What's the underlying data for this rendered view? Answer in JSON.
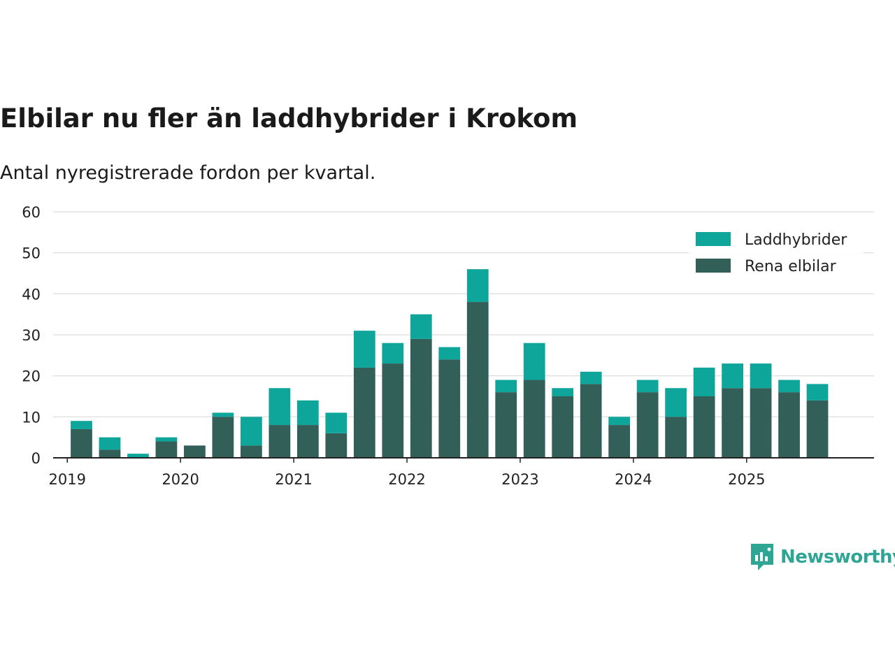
{
  "title": "Elbilar nu fler än laddhybrider i Krokom",
  "subtitle": "Antal nyregistrerade fordon per kvartal.",
  "brand": {
    "name": "Newsworthy",
    "icon": "newsworthy-logo-icon"
  },
  "colors": {
    "laddhybrider": "#0ea59a",
    "rena_elbilar": "#335f59",
    "grid": "#d9d9d9",
    "axis": "#222222",
    "text": "#222222"
  },
  "chart_data": {
    "type": "bar",
    "stacked": true,
    "title": "Elbilar nu fler än laddhybrider i Krokom",
    "subtitle": "Antal nyregistrerade fordon per kvartal.",
    "ylim": [
      0,
      60
    ],
    "yticks": [
      0,
      10,
      20,
      30,
      40,
      50,
      60
    ],
    "grid": true,
    "legend_position": "top-right",
    "xlim_quarters": [
      -1,
      28
    ],
    "x_year_ticks": [
      {
        "label": "2019",
        "quarter_pos": -0.5
      },
      {
        "label": "2020",
        "quarter_pos": 3.5
      },
      {
        "label": "2021",
        "quarter_pos": 7.5
      },
      {
        "label": "2022",
        "quarter_pos": 11.5
      },
      {
        "label": "2023",
        "quarter_pos": 15.5
      },
      {
        "label": "2024",
        "quarter_pos": 19.5
      },
      {
        "label": "2025",
        "quarter_pos": 23.5
      }
    ],
    "categories": [
      "2019 Q2",
      "2019 Q3",
      "2019 Q4",
      "2020 Q1",
      "2020 Q2",
      "2020 Q3",
      "2020 Q4",
      "2021 Q1",
      "2021 Q2",
      "2021 Q3",
      "2021 Q4",
      "2022 Q1",
      "2022 Q2",
      "2022 Q3",
      "2022 Q4",
      "2023 Q1",
      "2023 Q2",
      "2023 Q3",
      "2023 Q4",
      "2024 Q1",
      "2024 Q2",
      "2024 Q3",
      "2024 Q4",
      "2025 Q1",
      "2025 Q2",
      "2025 Q3",
      "2025 Q4"
    ],
    "series": [
      {
        "name": "Rena elbilar",
        "key": "rena_elbilar",
        "values": [
          7,
          2,
          0,
          4,
          3,
          10,
          3,
          8,
          8,
          6,
          22,
          23,
          29,
          24,
          38,
          16,
          19,
          15,
          18,
          8,
          16,
          10,
          15,
          17,
          17,
          16,
          14
        ]
      },
      {
        "name": "Laddhybrider",
        "key": "laddhybrider",
        "values": [
          2,
          3,
          1,
          1,
          0,
          1,
          7,
          9,
          6,
          5,
          9,
          5,
          6,
          3,
          8,
          3,
          9,
          2,
          3,
          2,
          3,
          7,
          7,
          6,
          6,
          3,
          4
        ]
      }
    ],
    "legend": [
      "Laddhybrider",
      "Rena elbilar"
    ]
  }
}
